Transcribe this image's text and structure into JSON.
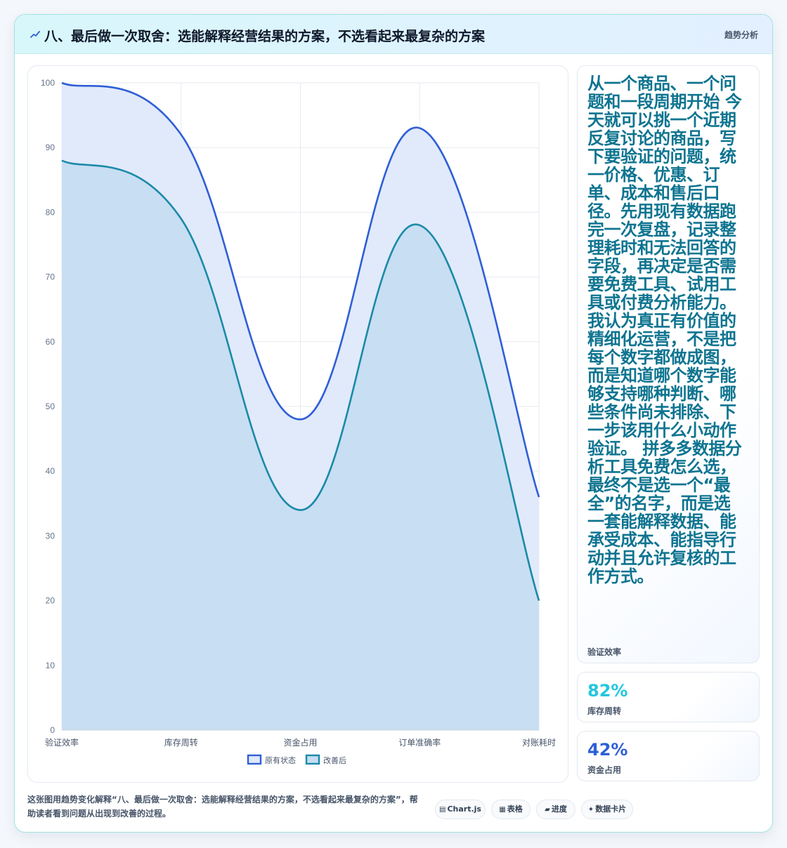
{
  "header": {
    "title": "八、最后做一次取舍：选能解释经营结果的方案，不选看起来最复杂的方案",
    "tag": "趋势分析",
    "icon": "line-trend-icon"
  },
  "chart_data": {
    "type": "area",
    "categories": [
      "验证效率",
      "库存周转",
      "资金占用",
      "订单准确率",
      "对账耗时"
    ],
    "series": [
      {
        "name": "原有状态",
        "values": [
          100,
          92,
          48,
          93,
          36
        ],
        "color": "#2f5fd6",
        "fill": "#dfe9fb"
      },
      {
        "name": "改善后",
        "values": [
          88,
          79,
          34,
          78,
          20
        ],
        "color": "#1a8aa8",
        "fill": "#c5ddf1"
      }
    ],
    "ylim": [
      0,
      100
    ],
    "yticks": [
      0,
      10,
      20,
      30,
      40,
      50,
      60,
      70,
      80,
      90,
      100
    ],
    "grid": true,
    "legend": "bottom"
  },
  "side": {
    "text": "从一个商品、一个问题和一段周期开始 今天就可以挑一个近期反复讨论的商品，写下要验证的问题，统一价格、优惠、订单、成本和售后口径。先用现有数据跑完一次复盘，记录整理耗时和无法回答的字段，再决定是否需要免费工具、试用工具或付费分析能力。 我认为真正有价值的精细化运营，不是把每个数字都做成图，而是知道哪个数字能够支持哪种判断、哪些条件尚未排除、下一步该用什么小动作验证。 拼多多数据分析工具免费怎么选，最终不是选一个“最全”的名字，而是选一套能解释数据、能承受成本、能指导行动并且允许复核的工作方式。",
    "text_label": "验证效率",
    "metrics": [
      {
        "value": "82%",
        "label": "库存周转",
        "color": "#22c7dd"
      },
      {
        "value": "42%",
        "label": "资金占用",
        "color": "#2f5fd6"
      }
    ]
  },
  "caption": "这张图用趋势变化解释“八、最后做一次取舍：选能解释经营结果的方案，不选看起来最复杂的方案”，帮助读者看到问题从出现到改善的过程。",
  "chips": [
    {
      "icon": "chart-icon",
      "glyph": "▤",
      "label": "Chart.js"
    },
    {
      "icon": "table-icon",
      "glyph": "▦",
      "label": "表格"
    },
    {
      "icon": "progress-icon",
      "glyph": "▰",
      "label": "进度"
    },
    {
      "icon": "sparkle-icon",
      "glyph": "✦",
      "label": "数据卡片"
    }
  ]
}
